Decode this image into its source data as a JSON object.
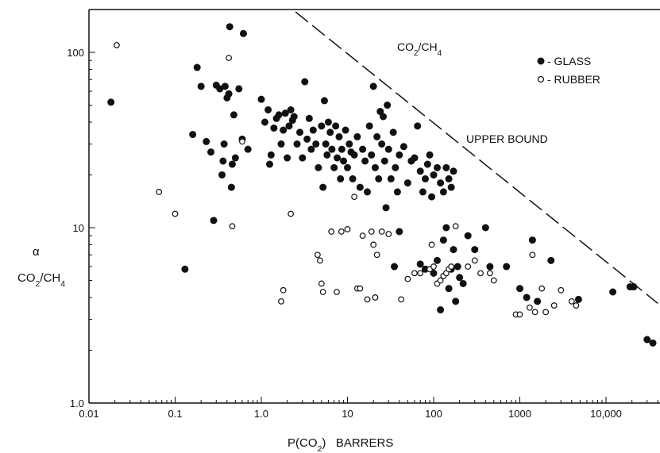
{
  "chart_data": {
    "type": "scatter",
    "title": "CO2/CH4",
    "xlabel": "P(CO2)   BARRERS",
    "ylabel_alpha": "α",
    "ylabel": "CO2/CH4",
    "x_scale": "log",
    "y_scale": "log",
    "xlim": [
      0.01,
      40000
    ],
    "ylim": [
      1,
      160
    ],
    "x_ticks": [
      {
        "value": 0.01,
        "label": "0.01"
      },
      {
        "value": 0.1,
        "label": "0.1"
      },
      {
        "value": 1,
        "label": "1.0"
      },
      {
        "value": 10,
        "label": "10"
      },
      {
        "value": 100,
        "label": "100"
      },
      {
        "value": 1000,
        "label": "1000"
      },
      {
        "value": 10000,
        "label": "10,000"
      }
    ],
    "y_ticks": [
      {
        "value": 1,
        "label": "1.0"
      },
      {
        "value": 10,
        "label": "10"
      },
      {
        "value": 100,
        "label": "100"
      }
    ],
    "grid": false,
    "legend_position": "top-right",
    "upper_bound": {
      "label": "UPPER BOUND",
      "points": [
        [
          2.5,
          170
        ],
        [
          40000,
          3.7
        ]
      ]
    },
    "series": [
      {
        "name": "GLASS",
        "legend_label": "- GLASS",
        "marker": "filled-circle",
        "points": [
          [
            0.018,
            52
          ],
          [
            0.13,
            5.8
          ],
          [
            0.16,
            34
          ],
          [
            0.18,
            82
          ],
          [
            0.2,
            64
          ],
          [
            0.23,
            31
          ],
          [
            0.26,
            27
          ],
          [
            0.28,
            11
          ],
          [
            0.3,
            65
          ],
          [
            0.33,
            62
          ],
          [
            0.35,
            20
          ],
          [
            0.36,
            24
          ],
          [
            0.37,
            30
          ],
          [
            0.38,
            64
          ],
          [
            0.4,
            55
          ],
          [
            0.42,
            58
          ],
          [
            0.43,
            140
          ],
          [
            0.45,
            17
          ],
          [
            0.46,
            23
          ],
          [
            0.48,
            44
          ],
          [
            0.5,
            25
          ],
          [
            0.55,
            62
          ],
          [
            0.6,
            32
          ],
          [
            0.62,
            128
          ],
          [
            0.7,
            28
          ],
          [
            1.0,
            54
          ],
          [
            1.1,
            40
          ],
          [
            1.2,
            47
          ],
          [
            1.25,
            23
          ],
          [
            1.3,
            26
          ],
          [
            1.4,
            37
          ],
          [
            1.5,
            42
          ],
          [
            1.6,
            44
          ],
          [
            1.7,
            30
          ],
          [
            1.8,
            36
          ],
          [
            1.9,
            45
          ],
          [
            2.0,
            25
          ],
          [
            2.1,
            38
          ],
          [
            2.2,
            47
          ],
          [
            2.3,
            41
          ],
          [
            2.4,
            43
          ],
          [
            2.6,
            30
          ],
          [
            2.8,
            35
          ],
          [
            3.0,
            25
          ],
          [
            3.2,
            68
          ],
          [
            3.4,
            32
          ],
          [
            3.6,
            42
          ],
          [
            3.8,
            28
          ],
          [
            4.0,
            36
          ],
          [
            4.3,
            30
          ],
          [
            4.6,
            22
          ],
          [
            5.0,
            38
          ],
          [
            5.2,
            17
          ],
          [
            5.4,
            53
          ],
          [
            5.6,
            30
          ],
          [
            5.8,
            26
          ],
          [
            6.0,
            40
          ],
          [
            6.3,
            35
          ],
          [
            6.6,
            28
          ],
          [
            7.0,
            22
          ],
          [
            7.3,
            38
          ],
          [
            7.6,
            25
          ],
          [
            8.0,
            33
          ],
          [
            8.3,
            19
          ],
          [
            8.6,
            28
          ],
          [
            9.0,
            24
          ],
          [
            9.5,
            36
          ],
          [
            10,
            22
          ],
          [
            10.5,
            30
          ],
          [
            11,
            27
          ],
          [
            11.5,
            19
          ],
          [
            12,
            26
          ],
          [
            13,
            33
          ],
          [
            14,
            17
          ],
          [
            15,
            28
          ],
          [
            16,
            24
          ],
          [
            17,
            16
          ],
          [
            18,
            38
          ],
          [
            19,
            26
          ],
          [
            20,
            64
          ],
          [
            21,
            22
          ],
          [
            22,
            33
          ],
          [
            23,
            19
          ],
          [
            24,
            46
          ],
          [
            25,
            30
          ],
          [
            26,
            43
          ],
          [
            27,
            24
          ],
          [
            28,
            13
          ],
          [
            29,
            50
          ],
          [
            30,
            28
          ],
          [
            32,
            19
          ],
          [
            34,
            35
          ],
          [
            36,
            22
          ],
          [
            38,
            16
          ],
          [
            40,
            26
          ],
          [
            45,
            29
          ],
          [
            50,
            18
          ],
          [
            55,
            24
          ],
          [
            60,
            25
          ],
          [
            65,
            38
          ],
          [
            70,
            21
          ],
          [
            75,
            16
          ],
          [
            80,
            19
          ],
          [
            85,
            23
          ],
          [
            90,
            26
          ],
          [
            95,
            15
          ],
          [
            100,
            20
          ],
          [
            110,
            22
          ],
          [
            120,
            18
          ],
          [
            130,
            16
          ],
          [
            140,
            22
          ],
          [
            150,
            19
          ],
          [
            160,
            17
          ],
          [
            170,
            21
          ],
          [
            35,
            6.0
          ],
          [
            40,
            9.5
          ],
          [
            70,
            6.2
          ],
          [
            80,
            5.8
          ],
          [
            100,
            5.5
          ],
          [
            110,
            6.5
          ],
          [
            120,
            3.4
          ],
          [
            130,
            8.5
          ],
          [
            140,
            10.0
          ],
          [
            150,
            4.5
          ],
          [
            160,
            5.8
          ],
          [
            170,
            7.5
          ],
          [
            180,
            3.8
          ],
          [
            190,
            6.0
          ],
          [
            200,
            5.2
          ],
          [
            220,
            4.8
          ],
          [
            250,
            9.0
          ],
          [
            300,
            7.5
          ],
          [
            400,
            10.0
          ],
          [
            450,
            6.0
          ],
          [
            700,
            6.0
          ],
          [
            1000,
            4.5
          ],
          [
            1200,
            4.0
          ],
          [
            1400,
            8.5
          ],
          [
            1600,
            3.8
          ],
          [
            2300,
            6.5
          ],
          [
            4800,
            3.9
          ],
          [
            12000,
            4.3
          ],
          [
            19000,
            4.6
          ],
          [
            21000,
            4.6
          ],
          [
            30000,
            2.3
          ],
          [
            35000,
            2.2
          ]
        ]
      },
      {
        "name": "RUBBER",
        "legend_label": "- RUBBER",
        "marker": "open-circle",
        "points": [
          [
            0.021,
            110
          ],
          [
            0.065,
            16
          ],
          [
            0.1,
            12
          ],
          [
            0.42,
            93
          ],
          [
            0.46,
            10.2
          ],
          [
            0.6,
            31
          ],
          [
            1.7,
            3.8
          ],
          [
            1.8,
            4.4
          ],
          [
            2.2,
            12
          ],
          [
            4.5,
            7.0
          ],
          [
            4.8,
            6.5
          ],
          [
            5.0,
            4.8
          ],
          [
            5.2,
            4.3
          ],
          [
            6.5,
            9.5
          ],
          [
            7.5,
            4.3
          ],
          [
            8.5,
            9.5
          ],
          [
            10,
            9.8
          ],
          [
            12,
            15
          ],
          [
            13,
            4.5
          ],
          [
            14,
            4.5
          ],
          [
            15,
            9.0
          ],
          [
            17,
            3.9
          ],
          [
            19,
            9.5
          ],
          [
            20,
            8.0
          ],
          [
            21,
            4.0
          ],
          [
            22,
            7.0
          ],
          [
            25,
            9.5
          ],
          [
            30,
            9.2
          ],
          [
            42,
            3.9
          ],
          [
            50,
            5.1
          ],
          [
            60,
            5.5
          ],
          [
            70,
            5.5
          ],
          [
            90,
            5.8
          ],
          [
            95,
            8.0
          ],
          [
            100,
            6.0
          ],
          [
            110,
            4.8
          ],
          [
            120,
            5.0
          ],
          [
            130,
            5.3
          ],
          [
            140,
            5.5
          ],
          [
            150,
            5.8
          ],
          [
            160,
            6.0
          ],
          [
            180,
            10.2
          ],
          [
            250,
            6.0
          ],
          [
            300,
            6.5
          ],
          [
            350,
            5.5
          ],
          [
            450,
            5.5
          ],
          [
            500,
            5.0
          ],
          [
            900,
            3.2
          ],
          [
            1000,
            3.2
          ],
          [
            1300,
            3.5
          ],
          [
            1400,
            7.0
          ],
          [
            1500,
            3.3
          ],
          [
            1800,
            4.5
          ],
          [
            2000,
            3.3
          ],
          [
            2500,
            3.6
          ],
          [
            3000,
            4.4
          ],
          [
            4000,
            3.8
          ],
          [
            4500,
            3.6
          ]
        ]
      }
    ]
  }
}
